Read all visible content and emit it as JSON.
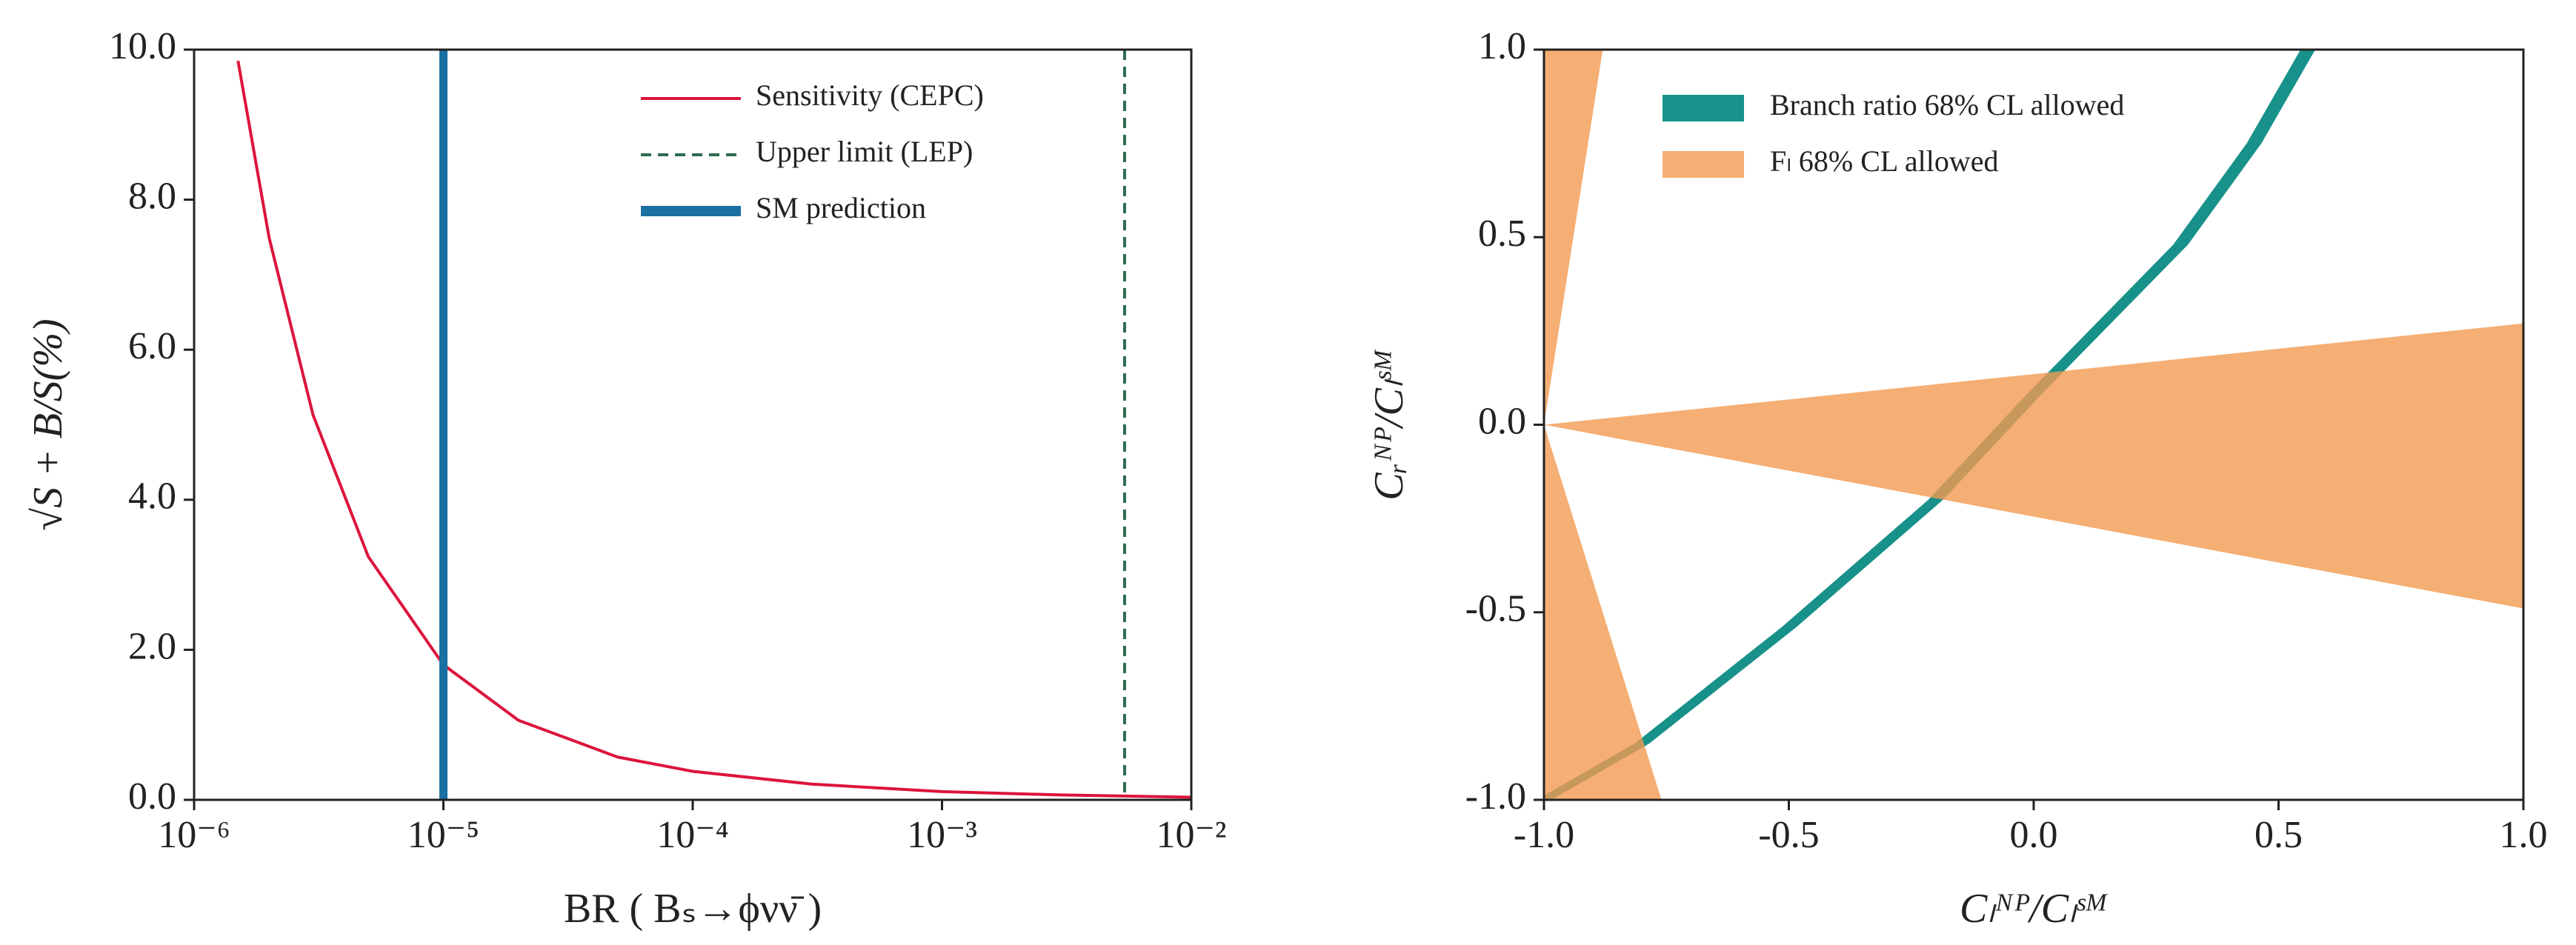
{
  "chart_data": [
    {
      "type": "line",
      "xlog": true,
      "xlabel": "BR ( Bₛ→ϕνν̄ )",
      "ylabel": "√S + B/S(%)",
      "series": [
        {
          "name": "Sensitivity (CEPC)",
          "color": "#dc143c",
          "x": [
            1.5e-06,
            2e-06,
            3e-06,
            5e-06,
            1e-05,
            2e-05,
            5e-05,
            0.0001,
            0.0003,
            0.001,
            0.003,
            0.01
          ],
          "values": [
            9.85,
            7.49,
            5.13,
            3.24,
            1.8,
            1.06,
            0.57,
            0.38,
            0.21,
            0.11,
            0.065,
            0.035
          ]
        }
      ],
      "vlines": [
        {
          "name": "Upper limit (LEP)",
          "x": 0.0054,
          "color": "#2e6b4f",
          "style": "dashed"
        },
        {
          "name": "SM prediction",
          "x": 1e-05,
          "color": "#1a6fa3",
          "style": "solid"
        }
      ],
      "xlim": [
        1e-06,
        0.01
      ],
      "xticks": [
        {
          "value": 1e-06,
          "label": "10⁻⁶"
        },
        {
          "value": 1e-05,
          "label": "10⁻⁵"
        },
        {
          "value": 0.0001,
          "label": "10⁻⁴"
        },
        {
          "value": 0.001,
          "label": "10⁻³"
        },
        {
          "value": 0.01,
          "label": "10⁻²"
        }
      ],
      "ylim": [
        0,
        10
      ],
      "yticks": [
        {
          "value": 0,
          "label": "0.0"
        },
        {
          "value": 2,
          "label": "2.0"
        },
        {
          "value": 4,
          "label": "4.0"
        },
        {
          "value": 6,
          "label": "6.0"
        },
        {
          "value": 8,
          "label": "8.0"
        },
        {
          "value": 10,
          "label": "10.0"
        }
      ],
      "legend": "upper right"
    },
    {
      "type": "area",
      "xlabel": "Cₗᴺᴾ/Cₗˢᴹ",
      "ylabel": "Cᵣᴺᴾ/Cₗˢᴹ",
      "regions": [
        {
          "name": "Branch ratio 68% CL allowed",
          "color": "#17918a",
          "polygons": [
            {
              "x": [
                -1.015,
                -0.815,
                -0.515,
                -0.215,
                -0.015,
                0.285,
                0.435,
                0.545,
                0.575,
                0.465,
                0.315,
                0.015,
                -0.185,
                -0.485,
                -0.785,
                -0.985
              ],
              "y": [
                -1,
                -0.85,
                -0.54,
                -0.2,
                0.08,
                0.48,
                0.75,
                1,
                1,
                0.75,
                0.48,
                0.08,
                -0.2,
                -0.54,
                -0.85,
                -1
              ]
            }
          ]
        },
        {
          "name": "Fₗ 68% CL allowed",
          "color": "#f39a50",
          "polygons": [
            {
              "x": [
                -1,
                -1,
                -0.88
              ],
              "y": [
                0,
                1,
                1
              ]
            },
            {
              "x": [
                -1,
                1,
                1
              ],
              "y": [
                0,
                0.27,
                -0.49
              ]
            },
            {
              "x": [
                -1,
                -1,
                -0.76
              ],
              "y": [
                0,
                -1,
                -1
              ]
            }
          ]
        }
      ],
      "xlim": [
        -1,
        1
      ],
      "xticks": [
        {
          "value": -1,
          "label": "-1.0"
        },
        {
          "value": -0.5,
          "label": "-0.5"
        },
        {
          "value": 0,
          "label": "0.0"
        },
        {
          "value": 0.5,
          "label": "0.5"
        },
        {
          "value": 1,
          "label": "1.0"
        }
      ],
      "ylim": [
        -1,
        1
      ],
      "yticks": [
        {
          "value": -1,
          "label": "-1.0"
        },
        {
          "value": -0.5,
          "label": "-0.5"
        },
        {
          "value": 0,
          "label": "0.0"
        },
        {
          "value": 0.5,
          "label": "0.5"
        },
        {
          "value": 1,
          "label": "1.0"
        }
      ],
      "legend": "upper left"
    }
  ]
}
